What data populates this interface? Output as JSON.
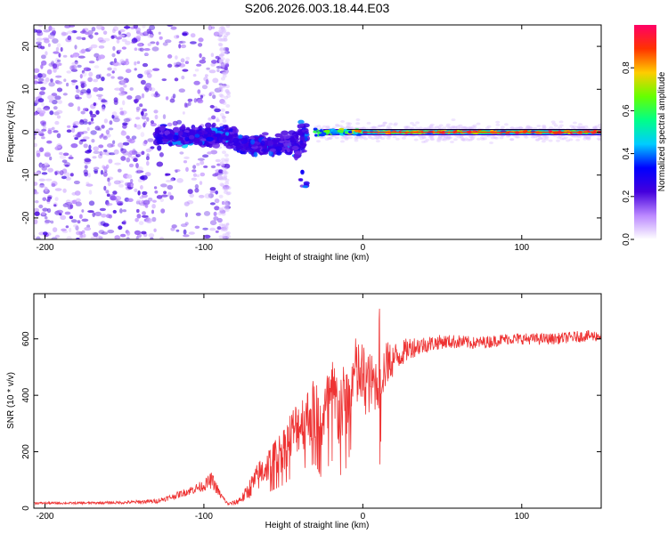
{
  "title": "S206.2026.003.18.44.E03",
  "chart_data": [
    {
      "type": "heatmap",
      "xlabel": "Height of straight line (km)",
      "ylabel": "Frequency (Hz)",
      "xlim": [
        -207,
        150
      ],
      "ylim": [
        -25,
        25
      ],
      "xticks": [
        -200,
        -100,
        0,
        100
      ],
      "xtick_labels": [
        "-200",
        "-100",
        "0",
        "100"
      ],
      "yticks": [
        -20,
        -10,
        0,
        10,
        20
      ],
      "ytick_labels": [
        "-20",
        "-10",
        "0",
        "10",
        "20"
      ],
      "colorbar": {
        "label": "Normalized spectral amplitude",
        "range": [
          0,
          1
        ],
        "ticks": [
          0.0,
          0.2,
          0.4,
          0.6,
          0.8
        ],
        "tick_labels": [
          "0.0",
          "0.2",
          "0.4",
          "0.6",
          "0.8"
        ],
        "colors": [
          "#ffffff",
          "#bb88ff",
          "#4400dd",
          "#0000ff",
          "#00ccff",
          "#00ff88",
          "#66ff00",
          "#ffcc00",
          "#ff3300",
          "#ff0066"
        ]
      },
      "features": [
        {
          "name": "noise",
          "x_range": [
            -207,
            -85
          ],
          "freq_range": [
            -25,
            25
          ],
          "amplitude": 0.08
        },
        {
          "name": "scatter",
          "x_range": [
            -130,
            -35
          ],
          "freq_range": [
            -14,
            5
          ],
          "amplitude": 0.2
        },
        {
          "name": "carrier",
          "x_range": [
            -30,
            150
          ],
          "freq": 0,
          "amplitude": 0.95
        }
      ]
    },
    {
      "type": "line",
      "xlabel": "Height of straight line (km)",
      "ylabel": "SNR (10 * v/v)",
      "xlim": [
        -207,
        150
      ],
      "ylim": [
        0,
        760
      ],
      "xticks": [
        -200,
        -100,
        0,
        100
      ],
      "xtick_labels": [
        "-200",
        "-100",
        "0",
        "100"
      ],
      "yticks": [
        0,
        200,
        400,
        600
      ],
      "ytick_labels": [
        "0",
        "200",
        "400",
        "600"
      ],
      "color": "#ee3333",
      "series": [
        {
          "name": "SNR",
          "x": [
            -207,
            -180,
            -150,
            -130,
            -120,
            -110,
            -100,
            -95,
            -90,
            -85,
            -80,
            -75,
            -70,
            -65,
            -60,
            -55,
            -50,
            -45,
            -40,
            -35,
            -30,
            -25,
            -20,
            -15,
            -10,
            -5,
            0,
            5,
            10,
            15,
            20,
            25,
            30,
            40,
            50,
            60,
            70,
            80,
            90,
            100,
            110,
            120,
            130,
            140,
            150
          ],
          "y": [
            18,
            18,
            20,
            25,
            40,
            60,
            80,
            100,
            50,
            15,
            20,
            40,
            80,
            120,
            150,
            180,
            210,
            260,
            300,
            320,
            350,
            300,
            400,
            350,
            370,
            480,
            460,
            440,
            450,
            510,
            530,
            550,
            570,
            580,
            590,
            590,
            585,
            590,
            600,
            600,
            600,
            600,
            605,
            610,
            610
          ],
          "amplitude": [
            4,
            4,
            5,
            8,
            10,
            15,
            20,
            30,
            15,
            5,
            10,
            20,
            40,
            55,
            60,
            70,
            80,
            95,
            100,
            110,
            120,
            130,
            140,
            150,
            140,
            130,
            130,
            110,
            100,
            80,
            60,
            45,
            40,
            30,
            25,
            25,
            22,
            22,
            20,
            20,
            20,
            20,
            20,
            20,
            20
          ]
        }
      ]
    }
  ]
}
